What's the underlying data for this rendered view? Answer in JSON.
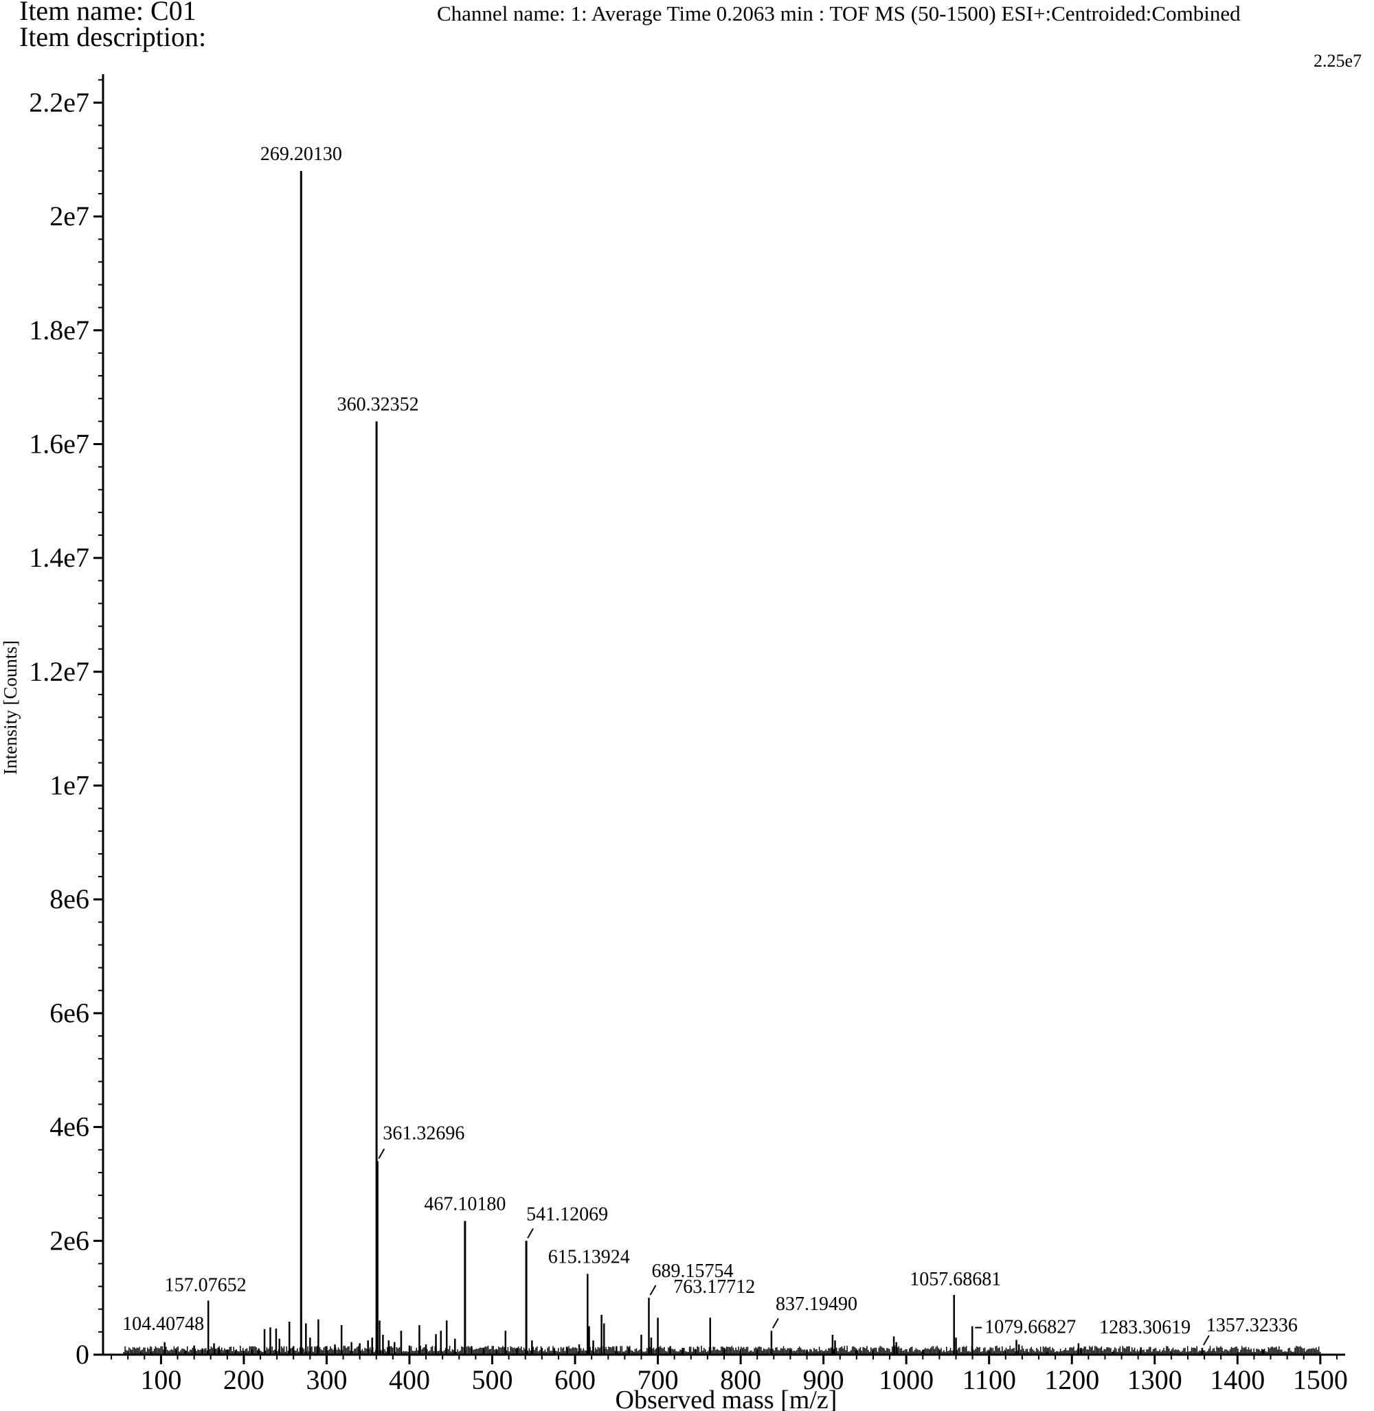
{
  "header": {
    "item_name": "Item name: C01",
    "item_description": "Item description:",
    "channel": "Channel name: 1: Average Time 0.2063 min : TOF MS (50-1500) ESI+:Centroided:Combined",
    "full_scale": "2.25e7"
  },
  "chart_data": {
    "type": "bar",
    "xlabel": "Observed mass [m/z]",
    "ylabel": "Intensity [Counts]",
    "xlim": [
      30,
      1530
    ],
    "ylim": [
      0,
      22500000
    ],
    "x_ticks": [
      100,
      200,
      300,
      400,
      500,
      600,
      700,
      800,
      900,
      1000,
      1100,
      1200,
      1300,
      1400,
      1500
    ],
    "x_tick_labels": [
      "100",
      "200",
      "300",
      "400",
      "500",
      "600",
      "700",
      "800",
      "900",
      "1000",
      "1100",
      "1200",
      "1300",
      "1400",
      "1500"
    ],
    "y_ticks": [
      0,
      2000000,
      4000000,
      6000000,
      8000000,
      10000000,
      12000000,
      14000000,
      16000000,
      18000000,
      20000000,
      22000000
    ],
    "y_tick_labels": [
      "0",
      "2e6",
      "4e6",
      "6e6",
      "8e6",
      "1e7",
      "1.2e7",
      "1.4e7",
      "1.6e7",
      "1.8e7",
      "2e7",
      "2.2e7"
    ],
    "labeled_peaks": [
      {
        "label": "104.40748",
        "mz": 104.40748,
        "intensity": 220000
      },
      {
        "label": "157.07652",
        "mz": 157.07652,
        "intensity": 950000
      },
      {
        "label": "269.20130",
        "mz": 269.2013,
        "intensity": 20800000
      },
      {
        "label": "360.32352",
        "mz": 360.32352,
        "intensity": 16400000
      },
      {
        "label": "361.32696",
        "mz": 361.32696,
        "intensity": 3400000
      },
      {
        "label": "467.10180",
        "mz": 467.1018,
        "intensity": 2350000
      },
      {
        "label": "541.12069",
        "mz": 541.12069,
        "intensity": 2000000
      },
      {
        "label": "615.13924",
        "mz": 615.13924,
        "intensity": 1420000
      },
      {
        "label": "689.15754",
        "mz": 689.15754,
        "intensity": 1000000
      },
      {
        "label": "763.17712",
        "mz": 763.17712,
        "intensity": 650000
      },
      {
        "label": "837.19490",
        "mz": 837.1949,
        "intensity": 420000
      },
      {
        "label": "1057.68681",
        "mz": 1057.68681,
        "intensity": 1050000
      },
      {
        "label": "1079.66827",
        "mz": 1079.66827,
        "intensity": 500000
      },
      {
        "label": "1283.30619",
        "mz": 1283.30619,
        "intensity": 130000
      },
      {
        "label": "1357.32336",
        "mz": 1357.32336,
        "intensity": 120000
      }
    ],
    "peaks": [
      {
        "mz": 60,
        "intensity": 30000
      },
      {
        "mz": 75,
        "intensity": 40000
      },
      {
        "mz": 88,
        "intensity": 50000
      },
      {
        "mz": 104.4,
        "intensity": 220000
      },
      {
        "mz": 118,
        "intensity": 90000
      },
      {
        "mz": 130,
        "intensity": 70000
      },
      {
        "mz": 140,
        "intensity": 160000
      },
      {
        "mz": 150,
        "intensity": 110000
      },
      {
        "mz": 157.08,
        "intensity": 950000
      },
      {
        "mz": 164,
        "intensity": 200000
      },
      {
        "mz": 170,
        "intensity": 120000
      },
      {
        "mz": 180,
        "intensity": 90000
      },
      {
        "mz": 190,
        "intensity": 80000
      },
      {
        "mz": 200,
        "intensity": 70000
      },
      {
        "mz": 210,
        "intensity": 90000
      },
      {
        "mz": 218,
        "intensity": 110000
      },
      {
        "mz": 225,
        "intensity": 450000
      },
      {
        "mz": 232,
        "intensity": 480000
      },
      {
        "mz": 239,
        "intensity": 460000
      },
      {
        "mz": 243,
        "intensity": 280000
      },
      {
        "mz": 255,
        "intensity": 580000
      },
      {
        "mz": 260,
        "intensity": 150000
      },
      {
        "mz": 269.2,
        "intensity": 20800000
      },
      {
        "mz": 275,
        "intensity": 550000
      },
      {
        "mz": 280,
        "intensity": 300000
      },
      {
        "mz": 290,
        "intensity": 620000
      },
      {
        "mz": 300,
        "intensity": 150000
      },
      {
        "mz": 310,
        "intensity": 180000
      },
      {
        "mz": 318,
        "intensity": 520000
      },
      {
        "mz": 330,
        "intensity": 220000
      },
      {
        "mz": 340,
        "intensity": 200000
      },
      {
        "mz": 350,
        "intensity": 250000
      },
      {
        "mz": 355,
        "intensity": 300000
      },
      {
        "mz": 360.32,
        "intensity": 16400000
      },
      {
        "mz": 361.33,
        "intensity": 3400000
      },
      {
        "mz": 364,
        "intensity": 600000
      },
      {
        "mz": 368,
        "intensity": 350000
      },
      {
        "mz": 375,
        "intensity": 250000
      },
      {
        "mz": 382,
        "intensity": 220000
      },
      {
        "mz": 390,
        "intensity": 420000
      },
      {
        "mz": 400,
        "intensity": 160000
      },
      {
        "mz": 412,
        "intensity": 520000
      },
      {
        "mz": 420,
        "intensity": 180000
      },
      {
        "mz": 432,
        "intensity": 360000
      },
      {
        "mz": 438,
        "intensity": 420000
      },
      {
        "mz": 445,
        "intensity": 600000
      },
      {
        "mz": 455,
        "intensity": 280000
      },
      {
        "mz": 467.1,
        "intensity": 2350000
      },
      {
        "mz": 475,
        "intensity": 150000
      },
      {
        "mz": 490,
        "intensity": 120000
      },
      {
        "mz": 505,
        "intensity": 100000
      },
      {
        "mz": 516,
        "intensity": 420000
      },
      {
        "mz": 530,
        "intensity": 120000
      },
      {
        "mz": 541.12,
        "intensity": 2000000
      },
      {
        "mz": 548,
        "intensity": 250000
      },
      {
        "mz": 560,
        "intensity": 120000
      },
      {
        "mz": 575,
        "intensity": 100000
      },
      {
        "mz": 590,
        "intensity": 140000
      },
      {
        "mz": 605,
        "intensity": 180000
      },
      {
        "mz": 615.14,
        "intensity": 1420000
      },
      {
        "mz": 617,
        "intensity": 500000
      },
      {
        "mz": 622,
        "intensity": 250000
      },
      {
        "mz": 632,
        "intensity": 700000
      },
      {
        "mz": 635,
        "intensity": 550000
      },
      {
        "mz": 650,
        "intensity": 150000
      },
      {
        "mz": 665,
        "intensity": 120000
      },
      {
        "mz": 680,
        "intensity": 350000
      },
      {
        "mz": 689.16,
        "intensity": 1000000
      },
      {
        "mz": 692,
        "intensity": 300000
      },
      {
        "mz": 700,
        "intensity": 650000
      },
      {
        "mz": 715,
        "intensity": 150000
      },
      {
        "mz": 730,
        "intensity": 120000
      },
      {
        "mz": 745,
        "intensity": 100000
      },
      {
        "mz": 763.18,
        "intensity": 650000
      },
      {
        "mz": 780,
        "intensity": 120000
      },
      {
        "mz": 800,
        "intensity": 100000
      },
      {
        "mz": 820,
        "intensity": 90000
      },
      {
        "mz": 837.19,
        "intensity": 420000
      },
      {
        "mz": 860,
        "intensity": 80000
      },
      {
        "mz": 880,
        "intensity": 90000
      },
      {
        "mz": 911,
        "intensity": 350000
      },
      {
        "mz": 914,
        "intensity": 250000
      },
      {
        "mz": 940,
        "intensity": 80000
      },
      {
        "mz": 960,
        "intensity": 70000
      },
      {
        "mz": 985,
        "intensity": 320000
      },
      {
        "mz": 988,
        "intensity": 220000
      },
      {
        "mz": 1020,
        "intensity": 80000
      },
      {
        "mz": 1040,
        "intensity": 70000
      },
      {
        "mz": 1057.69,
        "intensity": 1050000
      },
      {
        "mz": 1060,
        "intensity": 300000
      },
      {
        "mz": 1079.67,
        "intensity": 500000
      },
      {
        "mz": 1100,
        "intensity": 60000
      },
      {
        "mz": 1120,
        "intensity": 60000
      },
      {
        "mz": 1133,
        "intensity": 260000
      },
      {
        "mz": 1136,
        "intensity": 180000
      },
      {
        "mz": 1170,
        "intensity": 50000
      },
      {
        "mz": 1208,
        "intensity": 200000
      },
      {
        "mz": 1211,
        "intensity": 120000
      },
      {
        "mz": 1250,
        "intensity": 50000
      },
      {
        "mz": 1283.31,
        "intensity": 130000
      },
      {
        "mz": 1320,
        "intensity": 40000
      },
      {
        "mz": 1357.32,
        "intensity": 120000
      },
      {
        "mz": 1400,
        "intensity": 40000
      },
      {
        "mz": 1431,
        "intensity": 90000
      },
      {
        "mz": 1470,
        "intensity": 30000
      }
    ]
  }
}
